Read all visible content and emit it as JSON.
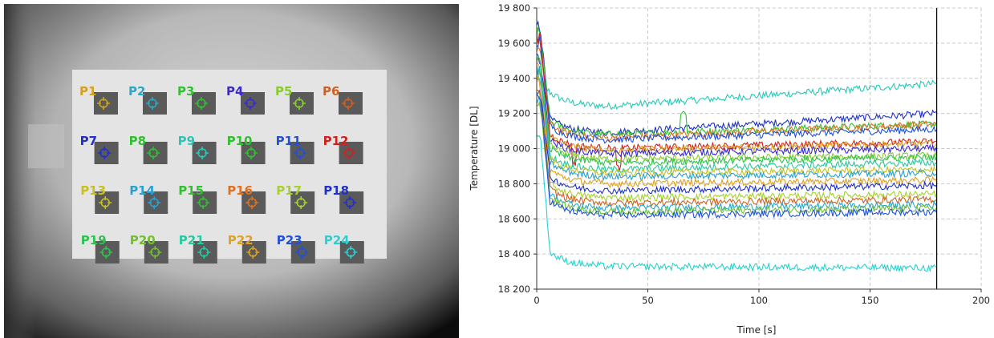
{
  "thermal_view": {
    "points": [
      {
        "label": "P1",
        "color": "#d4a020"
      },
      {
        "label": "P2",
        "color": "#2aa8c8"
      },
      {
        "label": "P3",
        "color": "#30c030"
      },
      {
        "label": "P4",
        "color": "#3a2ad0"
      },
      {
        "label": "P5",
        "color": "#88cc30"
      },
      {
        "label": "P6",
        "color": "#d06020"
      },
      {
        "label": "P7",
        "color": "#2030c8"
      },
      {
        "label": "P8",
        "color": "#30c030"
      },
      {
        "label": "P9",
        "color": "#28c8b8"
      },
      {
        "label": "P10",
        "color": "#30c030"
      },
      {
        "label": "P11",
        "color": "#2050d8"
      },
      {
        "label": "P12",
        "color": "#d02020"
      },
      {
        "label": "P13",
        "color": "#c8c020"
      },
      {
        "label": "P14",
        "color": "#2aa0d0"
      },
      {
        "label": "P15",
        "color": "#30c030"
      },
      {
        "label": "P16",
        "color": "#e07020"
      },
      {
        "label": "P17",
        "color": "#a8d030"
      },
      {
        "label": "P18",
        "color": "#2030c8"
      },
      {
        "label": "P19",
        "color": "#30c050"
      },
      {
        "label": "P20",
        "color": "#70c030"
      },
      {
        "label": "P21",
        "color": "#28c8a0"
      },
      {
        "label": "P22",
        "color": "#e0a020"
      },
      {
        "label": "P23",
        "color": "#2050d8"
      },
      {
        "label": "P24",
        "color": "#28d0d0"
      }
    ]
  },
  "chart_data": {
    "type": "line",
    "xlabel": "Time [s]",
    "ylabel": "Temperature [DL]",
    "xlim": [
      0,
      200
    ],
    "ylim": [
      18200,
      19800
    ],
    "x_ticks": [
      0,
      50,
      100,
      150,
      200
    ],
    "y_ticks": [
      18200,
      18400,
      18600,
      18800,
      19000,
      19200,
      19400,
      19600,
      19800
    ],
    "x_tick_labels": [
      "0",
      "50",
      "100",
      "150",
      "200"
    ],
    "y_tick_labels": [
      "18 200",
      "18 400",
      "18 600",
      "18 800",
      "19 000",
      "19 200",
      "19 400",
      "19 600",
      "19 800"
    ],
    "grid": true,
    "cursor_x": 180,
    "series": [
      {
        "color": "#28c8b8",
        "start": 19380,
        "level": 19240,
        "end": 19370
      },
      {
        "color": "#2030c8",
        "start": 19700,
        "level": 19090,
        "end": 19200
      },
      {
        "color": "#30c030",
        "start": 19660,
        "level": 19080,
        "end": 19140
      },
      {
        "color": "#e07020",
        "start": 19560,
        "level": 19060,
        "end": 19140
      },
      {
        "color": "#2050d8",
        "start": 19600,
        "level": 19050,
        "end": 19110
      },
      {
        "color": "#d02020",
        "start": 19640,
        "level": 19000,
        "end": 19040
      },
      {
        "color": "#d4a020",
        "start": 19480,
        "level": 18990,
        "end": 19030
      },
      {
        "color": "#3a2ad0",
        "start": 19520,
        "level": 18970,
        "end": 19000
      },
      {
        "color": "#88cc30",
        "start": 19420,
        "level": 18940,
        "end": 18960
      },
      {
        "color": "#30c050",
        "start": 19500,
        "level": 18920,
        "end": 18950
      },
      {
        "color": "#28c8a0",
        "start": 19460,
        "level": 18880,
        "end": 18920
      },
      {
        "color": "#c8c020",
        "start": 19400,
        "level": 18860,
        "end": 18880
      },
      {
        "color": "#2aa0d0",
        "start": 19440,
        "level": 18840,
        "end": 18860
      },
      {
        "color": "#e0a020",
        "start": 19360,
        "level": 18800,
        "end": 18820
      },
      {
        "color": "#2030c8",
        "start": 19340,
        "level": 18760,
        "end": 18790
      },
      {
        "color": "#a8d030",
        "start": 19300,
        "level": 18720,
        "end": 18740
      },
      {
        "color": "#d06020",
        "start": 19320,
        "level": 18690,
        "end": 18710
      },
      {
        "color": "#2aa8c8",
        "start": 19280,
        "level": 18660,
        "end": 18680
      },
      {
        "color": "#70c030",
        "start": 19260,
        "level": 18640,
        "end": 18660
      },
      {
        "color": "#2050d8",
        "start": 19300,
        "level": 18620,
        "end": 18640
      },
      {
        "color": "#28d0d0",
        "start": 19090,
        "level": 18330,
        "end": 18320
      }
    ]
  }
}
